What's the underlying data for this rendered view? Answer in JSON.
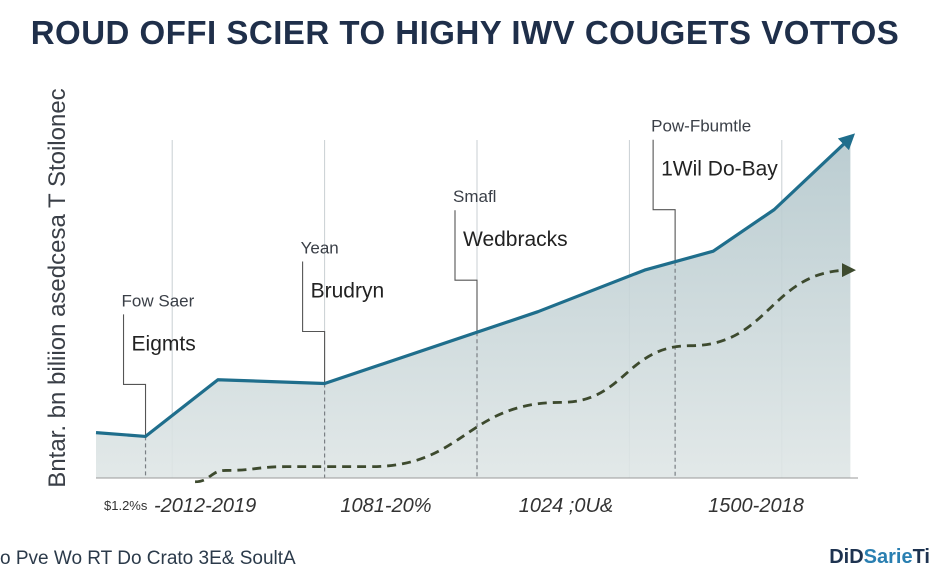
{
  "title": "ROUD OFFI SCIER TO HIGHY IWV COUGETS VOTTOS",
  "footer": {
    "left": "o Pve Wo RT Do Crato 3E& SoultA",
    "brand_a": "DiD",
    "brand_b": "Sarie",
    "brand_c": "Ti"
  },
  "chart_data": {
    "type": "area",
    "title": "ROUD OFFI SCIER TO HIGHY IWV COUGETS VOTTOS",
    "ylabel": "Bntar. bn biliion asedcesa T Stoilonec",
    "xlabel": "",
    "xlim": [
      0,
      100
    ],
    "ylim": [
      0,
      100
    ],
    "grid": true,
    "legend": "none",
    "series": [
      {
        "style": "solid-area",
        "color": "#1f6e8c",
        "x": [
          0,
          6.5,
          16,
          30,
          58,
          72,
          81,
          89,
          99
        ],
        "y": [
          12,
          11,
          26,
          25,
          44,
          55,
          60,
          71,
          90
        ]
      },
      {
        "style": "dashed",
        "color": "#3d4a2e",
        "x": [
          13,
          17,
          25,
          36,
          61,
          78,
          99
        ],
        "y": [
          -1,
          2,
          3,
          3,
          20,
          35,
          55
        ]
      }
    ],
    "annotations": [
      {
        "line1": "Fow Saer",
        "line2": "Eigmts",
        "x": 6.5
      },
      {
        "line1": "Yean",
        "line2": "Brudryn",
        "x": 30
      },
      {
        "line1": "Smafl",
        "line2": "Wedbracks",
        "x": 50
      },
      {
        "line1": "Pow-Fbumtle",
        "line2": "1Wil Do-Bay",
        "x": 76
      }
    ],
    "periods": [
      {
        "prefix": "$1.2%s",
        "label": "-2012-2019"
      },
      {
        "prefix": "",
        "label": "1081-20%"
      },
      {
        "prefix": "",
        "label": "1024 ;0U&"
      },
      {
        "prefix": "",
        "label": "1500-2018"
      }
    ]
  }
}
